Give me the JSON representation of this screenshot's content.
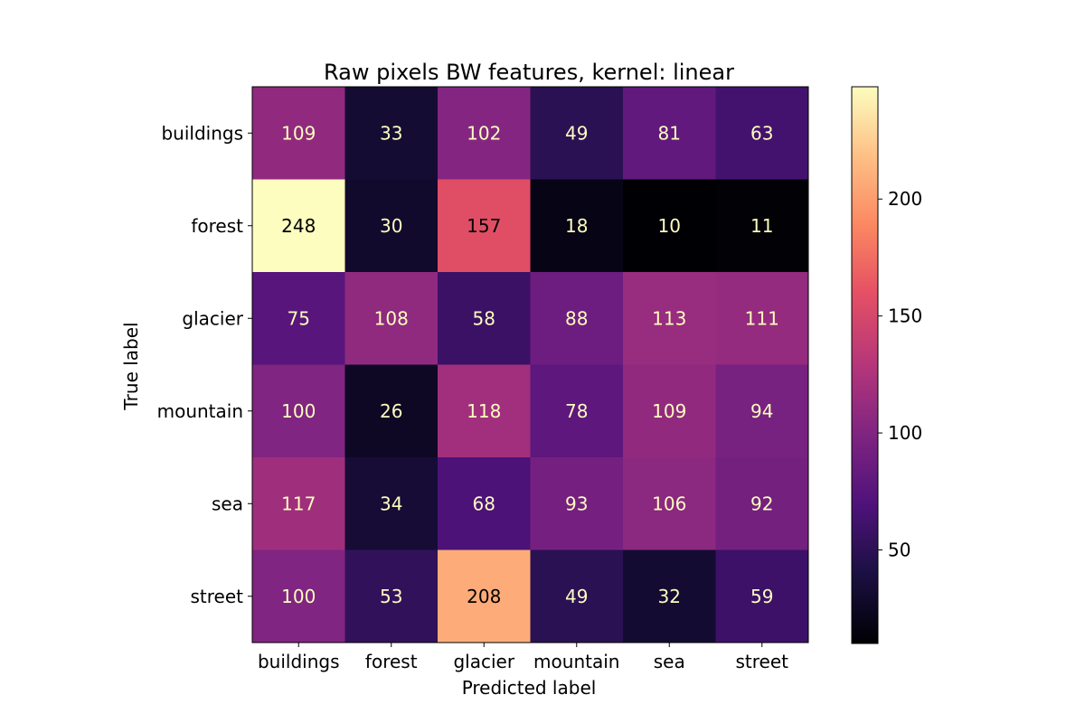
{
  "chart_data": {
    "type": "heatmap",
    "title": "Raw pixels BW features, kernel: linear",
    "xlabel": "Predicted label",
    "ylabel": "True label",
    "x_categories": [
      "buildings",
      "forest",
      "glacier",
      "mountain",
      "sea",
      "street"
    ],
    "y_categories": [
      "buildings",
      "forest",
      "glacier",
      "mountain",
      "sea",
      "street"
    ],
    "values": [
      [
        109,
        33,
        102,
        49,
        81,
        63
      ],
      [
        248,
        30,
        157,
        18,
        10,
        11
      ],
      [
        75,
        108,
        58,
        88,
        113,
        111
      ],
      [
        100,
        26,
        118,
        78,
        109,
        94
      ],
      [
        117,
        34,
        68,
        93,
        106,
        92
      ],
      [
        100,
        53,
        208,
        49,
        32,
        59
      ]
    ],
    "colormap": "magma",
    "vmin": 10,
    "vmax": 248,
    "colorbar_ticks": [
      50,
      100,
      150,
      200
    ],
    "text_color_dark": "#000000",
    "text_color_light": "#fcfdbf"
  }
}
